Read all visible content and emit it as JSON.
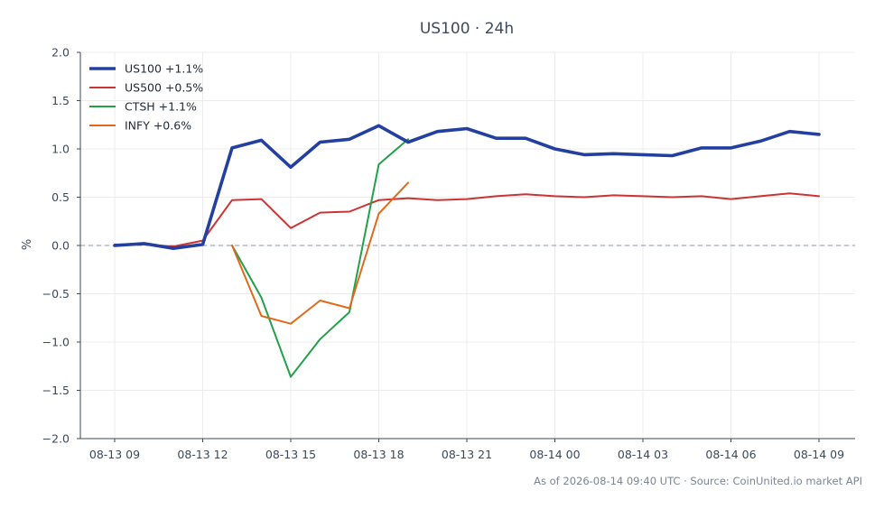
{
  "chart_data": {
    "type": "line",
    "title": "US100 · 24h",
    "xlabel": "",
    "ylabel": "%",
    "ylim": [
      -2.0,
      2.0
    ],
    "yticks": [
      -2.0,
      -1.5,
      -1.0,
      -0.5,
      0.0,
      0.5,
      1.0,
      1.5,
      2.0
    ],
    "ytick_labels": [
      "−2.0",
      "−1.5",
      "−1.0",
      "−0.5",
      "0.0",
      "0.5",
      "1.0",
      "1.5",
      "2.0"
    ],
    "x": [
      "08-13 09",
      "08-13 10",
      "08-13 11",
      "08-13 12",
      "08-13 13",
      "08-13 14",
      "08-13 15",
      "08-13 16",
      "08-13 17",
      "08-13 18",
      "08-13 19",
      "08-13 20",
      "08-13 21",
      "08-13 22",
      "08-13 23",
      "08-14 00",
      "08-14 01",
      "08-14 02",
      "08-14 03",
      "08-14 04",
      "08-14 05",
      "08-14 06",
      "08-14 07",
      "08-14 08",
      "08-14 09"
    ],
    "xtick_labels": [
      "08-13 09",
      "08-13 12",
      "08-13 15",
      "08-13 18",
      "08-13 21",
      "08-14 00",
      "08-14 03",
      "08-14 06",
      "08-14 09"
    ],
    "grid": true,
    "legend_position": "top-left",
    "reference_line": 0.0,
    "series": [
      {
        "name": "US100 +1.1%",
        "color": "#2340a0",
        "values": [
          0.0,
          0.02,
          -0.03,
          0.01,
          1.01,
          1.09,
          0.81,
          1.07,
          1.1,
          1.24,
          1.07,
          1.18,
          1.21,
          1.11,
          1.11,
          1.0,
          0.94,
          0.95,
          0.94,
          0.93,
          1.01,
          1.01,
          1.08,
          1.18,
          1.15
        ]
      },
      {
        "name": "US500 +0.5%",
        "color": "#cc3333",
        "values": [
          0.01,
          0.01,
          -0.01,
          0.05,
          0.47,
          0.48,
          0.18,
          0.34,
          0.35,
          0.47,
          0.49,
          0.47,
          0.48,
          0.51,
          0.53,
          0.51,
          0.5,
          0.52,
          0.51,
          0.5,
          0.51,
          0.48,
          0.51,
          0.54,
          0.51
        ]
      },
      {
        "name": "CTSH +1.1%",
        "color": "#22a04a",
        "values": [
          null,
          null,
          null,
          null,
          0.0,
          -0.54,
          -1.36,
          -0.97,
          -0.69,
          0.84,
          1.1,
          null,
          null,
          null,
          null,
          null,
          null,
          null,
          null,
          null,
          null,
          null,
          null,
          null,
          null
        ]
      },
      {
        "name": "INFY +0.6%",
        "color": "#e06a1c",
        "values": [
          null,
          null,
          null,
          null,
          0.0,
          -0.73,
          -0.81,
          -0.57,
          -0.65,
          0.33,
          0.65,
          null,
          null,
          null,
          null,
          null,
          null,
          null,
          null,
          null,
          null,
          null,
          null,
          null,
          null
        ]
      }
    ]
  },
  "footer": "As of 2026-08-14 09:40 UTC · Source: CoinUnited.io market API"
}
